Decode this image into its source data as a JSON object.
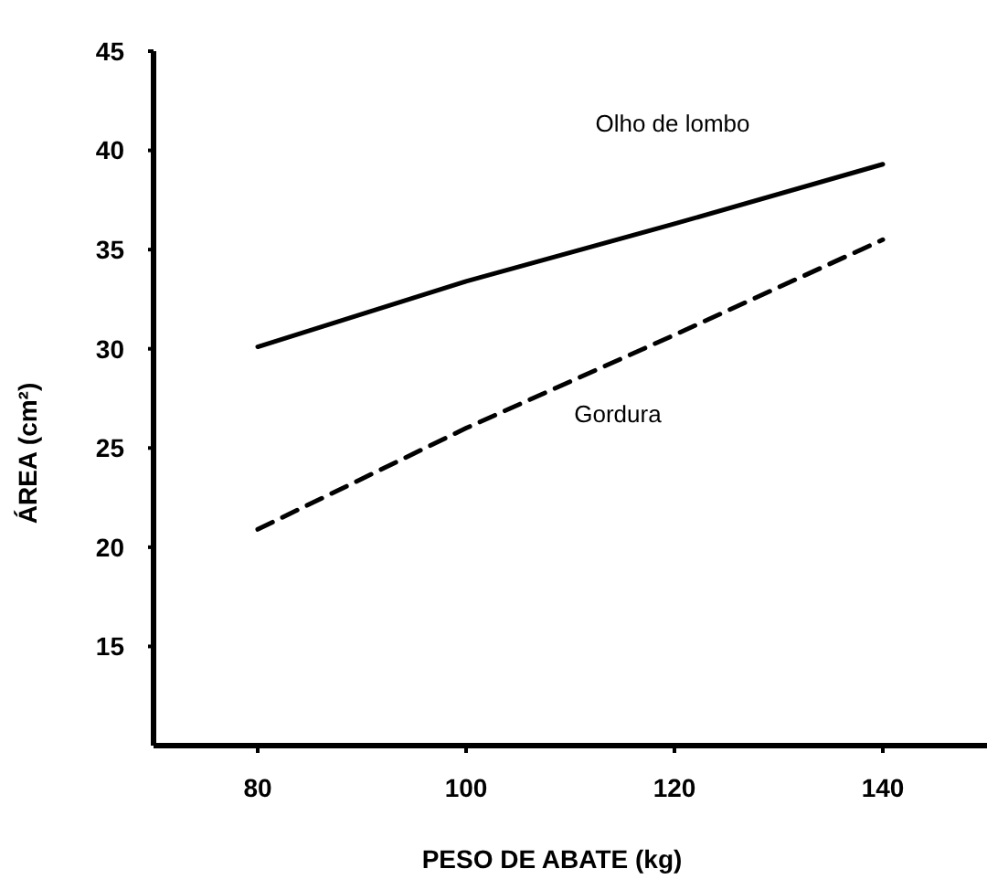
{
  "chart_data": {
    "type": "line",
    "xlabel": "PESO DE ABATE (kg)",
    "ylabel": "ÁREA (cm²)",
    "x": [
      80,
      100,
      120,
      140
    ],
    "series": [
      {
        "name": "Olho de lombo",
        "color": "#000000",
        "values": [
          30.1,
          33.4,
          36.3,
          39.3
        ],
        "line_style": "solid"
      },
      {
        "name": "Gordura",
        "color": "#000000",
        "values": [
          20.9,
          26.0,
          30.7,
          35.5
        ],
        "line_style": "dashed"
      }
    ],
    "xlim": [
      70,
      150
    ],
    "ylim": [
      10,
      45
    ],
    "xticks": [
      80,
      100,
      120,
      140
    ],
    "yticks": [
      15,
      20,
      25,
      30,
      35,
      40,
      45
    ],
    "grid": false,
    "marker": "none"
  }
}
